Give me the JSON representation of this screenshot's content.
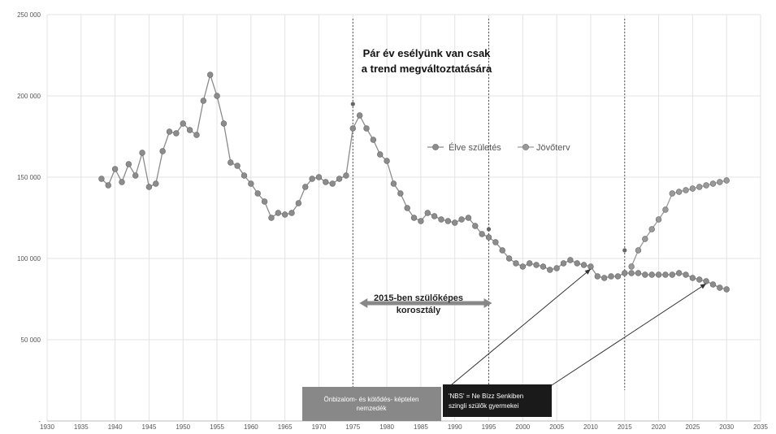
{
  "chart_data": {
    "type": "line",
    "title_lines": [
      "Pár év esélyünk van csak",
      "a trend megváltoztatására"
    ],
    "xlabel": "",
    "ylabel": "",
    "xlim": [
      1930,
      2035
    ],
    "ylim": [
      0,
      250000
    ],
    "x_ticks": [
      1930,
      1935,
      1940,
      1945,
      1950,
      1955,
      1960,
      1965,
      1970,
      1975,
      1980,
      1985,
      1990,
      1995,
      2000,
      2005,
      2010,
      2015,
      2020,
      2025,
      2030,
      2035
    ],
    "y_ticks": [
      0,
      50000,
      100000,
      150000,
      200000,
      250000
    ],
    "y_tick_labels": [
      "-",
      "50 000",
      "100 000",
      "150 000",
      "200 000",
      "250 000"
    ],
    "grid": true,
    "legend_position": "right",
    "vertical_markers": [
      1975,
      1995,
      2015
    ],
    "series": [
      {
        "name": "Élve születés",
        "color": "#8c8c8c",
        "x": [
          1938,
          1939,
          1940,
          1941,
          1942,
          1943,
          1944,
          1945,
          1946,
          1947,
          1948,
          1949,
          1950,
          1951,
          1952,
          1953,
          1954,
          1955,
          1956,
          1957,
          1958,
          1959,
          1960,
          1961,
          1962,
          1963,
          1964,
          1965,
          1966,
          1967,
          1968,
          1969,
          1970,
          1971,
          1972,
          1973,
          1974,
          1975,
          1976,
          1977,
          1978,
          1979,
          1980,
          1981,
          1982,
          1983,
          1984,
          1985,
          1986,
          1987,
          1988,
          1989,
          1990,
          1991,
          1992,
          1993,
          1994,
          1995,
          1996,
          1997,
          1998,
          1999,
          2000,
          2001,
          2002,
          2003,
          2004,
          2005,
          2006,
          2007,
          2008,
          2009,
          2010,
          2011,
          2012,
          2013,
          2014,
          2015,
          2016,
          2017,
          2018,
          2019,
          2020,
          2021,
          2022,
          2023,
          2024,
          2025,
          2026,
          2027,
          2028,
          2029,
          2030
        ],
        "y": [
          149000,
          145000,
          155000,
          147000,
          158000,
          151000,
          165000,
          144000,
          146000,
          166000,
          178000,
          177000,
          183000,
          179000,
          176000,
          197000,
          213000,
          200000,
          183000,
          159000,
          157000,
          151000,
          146000,
          140000,
          135000,
          125000,
          128000,
          127000,
          128000,
          134000,
          144000,
          149000,
          150000,
          147000,
          146000,
          149000,
          151000,
          180000,
          188000,
          180000,
          173000,
          164000,
          160000,
          146000,
          140000,
          131000,
          125000,
          123000,
          128000,
          126000,
          124000,
          123000,
          122000,
          124000,
          125000,
          120000,
          115000,
          113000,
          110000,
          105000,
          100000,
          97000,
          95000,
          97000,
          96000,
          95000,
          93000,
          94000,
          97000,
          99000,
          97000,
          96000,
          95000,
          89000,
          88000,
          89000,
          89000,
          91000,
          91000,
          91000,
          90000,
          90000,
          90000,
          90000,
          90000,
          91000,
          90000,
          88000,
          87000,
          86000,
          84000,
          82000,
          81000
        ]
      },
      {
        "name": "Jövőterv",
        "color": "#9a9a9a",
        "x": [
          2016,
          2017,
          2018,
          2019,
          2020,
          2021,
          2022,
          2023,
          2024,
          2025,
          2026,
          2027,
          2028,
          2029,
          2030
        ],
        "y": [
          95000,
          105000,
          112000,
          118000,
          124000,
          130000,
          140000,
          141000,
          142000,
          143000,
          144000,
          145000,
          146000,
          147000,
          148000
        ]
      }
    ],
    "annotations": {
      "arrow_label_lines": [
        "2015-ben szülőképes",
        "korosztály"
      ],
      "arrow_range": [
        1975,
        1995
      ],
      "box1_lines": [
        "Önbizalom- és kötődés- képtelen",
        "nemzedék"
      ],
      "box1_color": "#888888",
      "box1_target": [
        2010,
        95000
      ],
      "box2_lines": [
        "'NBS' = Ne Bízz Senkiben",
        "szingli szülők gyermekei"
      ],
      "box2_color": "#1a1a1a",
      "box2_target": [
        2027,
        86000
      ],
      "extra_points": [
        [
          1975,
          195000
        ],
        [
          1995,
          118000
        ],
        [
          2015,
          105000
        ]
      ]
    }
  }
}
